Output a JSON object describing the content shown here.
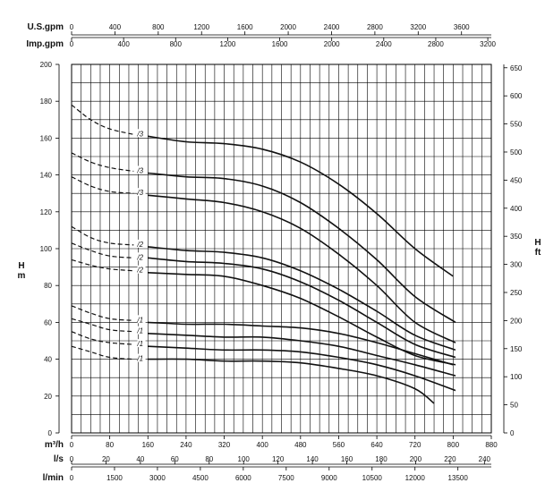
{
  "chart_data": {
    "type": "line",
    "title": "",
    "grid": true,
    "axes": {
      "h_left": {
        "label": "H",
        "unit": "m",
        "range": [
          0,
          200
        ],
        "ticks": [
          0,
          20,
          40,
          60,
          80,
          100,
          120,
          140,
          160,
          180,
          200
        ]
      },
      "h_right": {
        "label": "H",
        "unit": "ft",
        "range": [
          0,
          656
        ],
        "ticks": [
          0,
          50,
          100,
          150,
          200,
          250,
          300,
          350,
          400,
          450,
          500,
          550,
          600,
          650
        ]
      },
      "q_m3h": {
        "label": "m³/h",
        "range": [
          0,
          880
        ],
        "ticks": [
          0,
          80,
          160,
          240,
          320,
          400,
          480,
          560,
          640,
          720,
          800,
          880
        ]
      },
      "q_us_gpm": {
        "label": "U.S.gpm",
        "range": [
          0,
          3875
        ],
        "ticks": [
          0,
          400,
          800,
          1200,
          1600,
          2000,
          2400,
          2800,
          3200,
          3600
        ]
      },
      "q_imp_gpm": {
        "label": "Imp.gpm",
        "range": [
          0,
          3227
        ],
        "ticks": [
          0,
          400,
          800,
          1200,
          1600,
          2000,
          2400,
          2800,
          3200
        ]
      },
      "q_ls": {
        "label": "l/s",
        "range": [
          0,
          244
        ],
        "ticks": [
          0,
          20,
          40,
          60,
          80,
          100,
          120,
          140,
          160,
          180,
          200,
          220,
          240
        ]
      },
      "q_lmin": {
        "label": "l/min",
        "range": [
          0,
          14667
        ],
        "ticks": [
          0,
          1500,
          3000,
          4500,
          6000,
          7500,
          9000,
          10500,
          12000,
          13500
        ]
      }
    },
    "series": [
      {
        "name": "/3",
        "dashed": [
          [
            0,
            178
          ],
          [
            40,
            170
          ],
          [
            80,
            165
          ],
          [
            130,
            162
          ]
        ],
        "solid": [
          [
            160,
            161
          ],
          [
            240,
            158
          ],
          [
            320,
            157
          ],
          [
            400,
            154
          ],
          [
            480,
            147
          ],
          [
            560,
            135
          ],
          [
            640,
            119
          ],
          [
            720,
            100
          ],
          [
            800,
            85
          ]
        ]
      },
      {
        "name": "/3",
        "dashed": [
          [
            0,
            152
          ],
          [
            40,
            147
          ],
          [
            80,
            144
          ],
          [
            130,
            142
          ]
        ],
        "solid": [
          [
            160,
            141
          ],
          [
            240,
            139
          ],
          [
            320,
            138
          ],
          [
            400,
            134
          ],
          [
            480,
            125
          ],
          [
            560,
            111
          ],
          [
            640,
            94
          ],
          [
            720,
            74
          ],
          [
            805,
            60
          ]
        ]
      },
      {
        "name": "/3",
        "dashed": [
          [
            0,
            139
          ],
          [
            40,
            134
          ],
          [
            80,
            131
          ],
          [
            130,
            130
          ]
        ],
        "solid": [
          [
            160,
            129
          ],
          [
            240,
            127
          ],
          [
            320,
            125
          ],
          [
            400,
            120
          ],
          [
            480,
            111
          ],
          [
            560,
            97
          ],
          [
            640,
            80
          ],
          [
            720,
            60
          ],
          [
            805,
            49
          ]
        ]
      },
      {
        "name": "/2",
        "dashed": [
          [
            0,
            112
          ],
          [
            40,
            106
          ],
          [
            80,
            103
          ],
          [
            130,
            102
          ]
        ],
        "solid": [
          [
            160,
            101
          ],
          [
            240,
            99
          ],
          [
            320,
            98
          ],
          [
            400,
            95
          ],
          [
            480,
            88
          ],
          [
            560,
            78
          ],
          [
            640,
            66
          ],
          [
            720,
            53
          ],
          [
            805,
            45
          ]
        ]
      },
      {
        "name": "/2",
        "dashed": [
          [
            0,
            103
          ],
          [
            40,
            99
          ],
          [
            80,
            96
          ],
          [
            130,
            95
          ]
        ],
        "solid": [
          [
            160,
            95
          ],
          [
            240,
            93
          ],
          [
            320,
            92
          ],
          [
            400,
            89
          ],
          [
            480,
            82
          ],
          [
            560,
            72
          ],
          [
            640,
            60
          ],
          [
            720,
            48
          ],
          [
            805,
            41
          ]
        ]
      },
      {
        "name": "/2",
        "dashed": [
          [
            0,
            94
          ],
          [
            40,
            91
          ],
          [
            80,
            89
          ],
          [
            130,
            88
          ]
        ],
        "solid": [
          [
            160,
            87
          ],
          [
            240,
            86
          ],
          [
            320,
            85
          ],
          [
            400,
            80
          ],
          [
            480,
            73
          ],
          [
            560,
            63
          ],
          [
            640,
            52
          ],
          [
            720,
            42
          ],
          [
            805,
            37
          ]
        ]
      },
      {
        "name": "/1",
        "dashed": [
          [
            0,
            69
          ],
          [
            40,
            65
          ],
          [
            80,
            62
          ],
          [
            130,
            61
          ]
        ],
        "solid": [
          [
            160,
            60
          ],
          [
            240,
            59
          ],
          [
            320,
            59
          ],
          [
            400,
            58
          ],
          [
            480,
            57
          ],
          [
            560,
            54
          ],
          [
            640,
            49
          ],
          [
            720,
            43
          ],
          [
            800,
            37
          ]
        ]
      },
      {
        "name": "/1",
        "dashed": [
          [
            0,
            62
          ],
          [
            40,
            59
          ],
          [
            80,
            56
          ],
          [
            130,
            55
          ]
        ],
        "solid": [
          [
            160,
            54
          ],
          [
            240,
            53
          ],
          [
            320,
            52
          ],
          [
            400,
            52
          ],
          [
            480,
            50
          ],
          [
            560,
            47
          ],
          [
            640,
            42
          ],
          [
            720,
            37
          ],
          [
            805,
            31
          ]
        ]
      },
      {
        "name": "/1",
        "dashed": [
          [
            0,
            55
          ],
          [
            40,
            51
          ],
          [
            80,
            49
          ],
          [
            130,
            48
          ]
        ],
        "solid": [
          [
            160,
            47
          ],
          [
            240,
            46
          ],
          [
            320,
            45
          ],
          [
            400,
            45
          ],
          [
            480,
            44
          ],
          [
            560,
            41
          ],
          [
            640,
            37
          ],
          [
            720,
            31
          ],
          [
            805,
            23
          ]
        ]
      },
      {
        "name": "/1",
        "dashed": [
          [
            0,
            47
          ],
          [
            40,
            44
          ],
          [
            80,
            41
          ],
          [
            130,
            40
          ]
        ],
        "solid": [
          [
            160,
            40
          ],
          [
            240,
            40
          ],
          [
            320,
            39
          ],
          [
            400,
            39
          ],
          [
            480,
            38
          ],
          [
            560,
            35
          ],
          [
            640,
            31
          ],
          [
            720,
            24
          ],
          [
            760,
            16
          ]
        ]
      }
    ]
  }
}
